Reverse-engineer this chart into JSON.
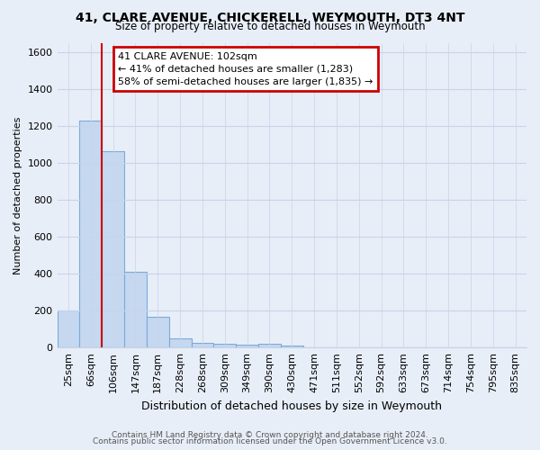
{
  "title": "41, CLARE AVENUE, CHICKERELL, WEYMOUTH, DT3 4NT",
  "subtitle": "Size of property relative to detached houses in Weymouth",
  "xlabel": "Distribution of detached houses by size in Weymouth",
  "ylabel": "Number of detached properties",
  "categories": [
    "25sqm",
    "66sqm",
    "106sqm",
    "147sqm",
    "187sqm",
    "228sqm",
    "268sqm",
    "309sqm",
    "349sqm",
    "390sqm",
    "430sqm",
    "471sqm",
    "511sqm",
    "552sqm",
    "592sqm",
    "633sqm",
    "673sqm",
    "714sqm",
    "754sqm",
    "795sqm",
    "835sqm"
  ],
  "values": [
    200,
    1230,
    1065,
    410,
    165,
    50,
    25,
    20,
    15,
    20,
    12,
    0,
    0,
    0,
    0,
    0,
    0,
    0,
    0,
    0,
    0
  ],
  "bar_color": "#c5d8f0",
  "bar_edge_color": "#7aabda",
  "property_line_bin": 2,
  "property_label": "41 CLARE AVENUE: 102sqm",
  "annotation_line1": "41% of detached houses are smaller (1,283)",
  "annotation_line2": "58% of semi-detached houses are larger (1,835)",
  "annotation_box_color": "#ffffff",
  "annotation_box_edge": "#cc0000",
  "red_line_color": "#cc0000",
  "ylim": [
    0,
    1650
  ],
  "yticks": [
    0,
    200,
    400,
    600,
    800,
    1000,
    1200,
    1400,
    1600
  ],
  "footer1": "Contains HM Land Registry data © Crown copyright and database right 2024.",
  "footer2": "Contains public sector information licensed under the Open Government Licence v3.0.",
  "bg_color": "#e8eef8",
  "plot_bg_color": "#e8eef8",
  "grid_color": "#c8d4e8"
}
